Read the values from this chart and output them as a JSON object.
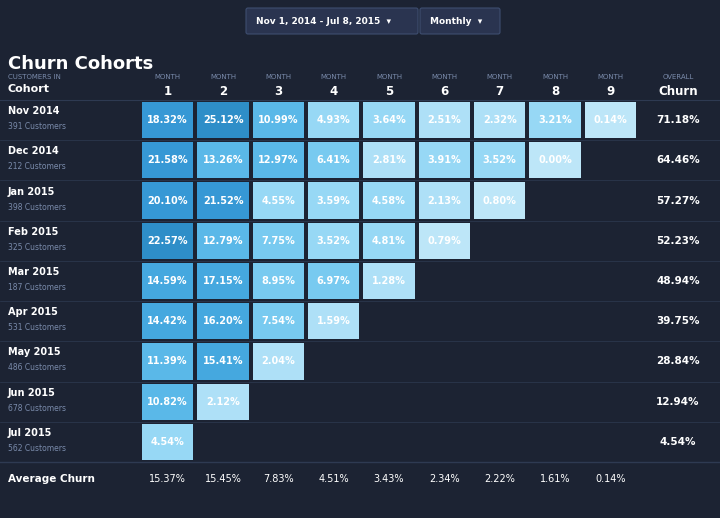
{
  "title": "Churn Cohorts",
  "filter_text": "Nov 1, 2014 - Jul 8, 2015",
  "period_text": "Monthly",
  "bg_color": "#1c2333",
  "header_area_color": "#1c2333",
  "cohort_rows": [
    {
      "label": "Nov 2014",
      "sub": "391 Customers",
      "values": [
        18.32,
        25.12,
        10.99,
        4.93,
        3.64,
        2.51,
        2.32,
        3.21,
        0.14
      ],
      "overall": "71.18%"
    },
    {
      "label": "Dec 2014",
      "sub": "212 Customers",
      "values": [
        21.58,
        13.26,
        12.97,
        6.41,
        2.81,
        3.91,
        3.52,
        0.0,
        null
      ],
      "overall": "64.46%"
    },
    {
      "label": "Jan 2015",
      "sub": "398 Customers",
      "values": [
        20.1,
        21.52,
        4.55,
        3.59,
        4.58,
        2.13,
        0.8,
        null,
        null
      ],
      "overall": "57.27%"
    },
    {
      "label": "Feb 2015",
      "sub": "325 Customers",
      "values": [
        22.57,
        12.79,
        7.75,
        3.52,
        4.81,
        0.79,
        null,
        null,
        null
      ],
      "overall": "52.23%"
    },
    {
      "label": "Mar 2015",
      "sub": "187 Customers",
      "values": [
        14.59,
        17.15,
        8.95,
        6.97,
        1.28,
        null,
        null,
        null,
        null
      ],
      "overall": "48.94%"
    },
    {
      "label": "Apr 2015",
      "sub": "531 Customers",
      "values": [
        14.42,
        16.2,
        7.54,
        1.59,
        null,
        null,
        null,
        null,
        null
      ],
      "overall": "39.75%"
    },
    {
      "label": "May 2015",
      "sub": "486 Customers",
      "values": [
        11.39,
        15.41,
        2.04,
        null,
        null,
        null,
        null,
        null,
        null
      ],
      "overall": "28.84%"
    },
    {
      "label": "Jun 2015",
      "sub": "678 Customers",
      "values": [
        10.82,
        2.12,
        null,
        null,
        null,
        null,
        null,
        null,
        null
      ],
      "overall": "12.94%"
    },
    {
      "label": "Jul 2015",
      "sub": "562 Customers",
      "values": [
        4.54,
        null,
        null,
        null,
        null,
        null,
        null,
        null,
        null
      ],
      "overall": "4.54%"
    }
  ],
  "avg_values": [
    "15.37%",
    "15.45%",
    "7.83%",
    "4.51%",
    "3.43%",
    "2.34%",
    "2.22%",
    "1.61%",
    "0.14%"
  ],
  "months": [
    "1",
    "2",
    "3",
    "4",
    "5",
    "6",
    "7",
    "8",
    "9"
  ],
  "text_white": "#ffffff",
  "text_dim": "#7a8bab",
  "cell_empty": "#1e2840",
  "sep_color": "#2e3a52"
}
